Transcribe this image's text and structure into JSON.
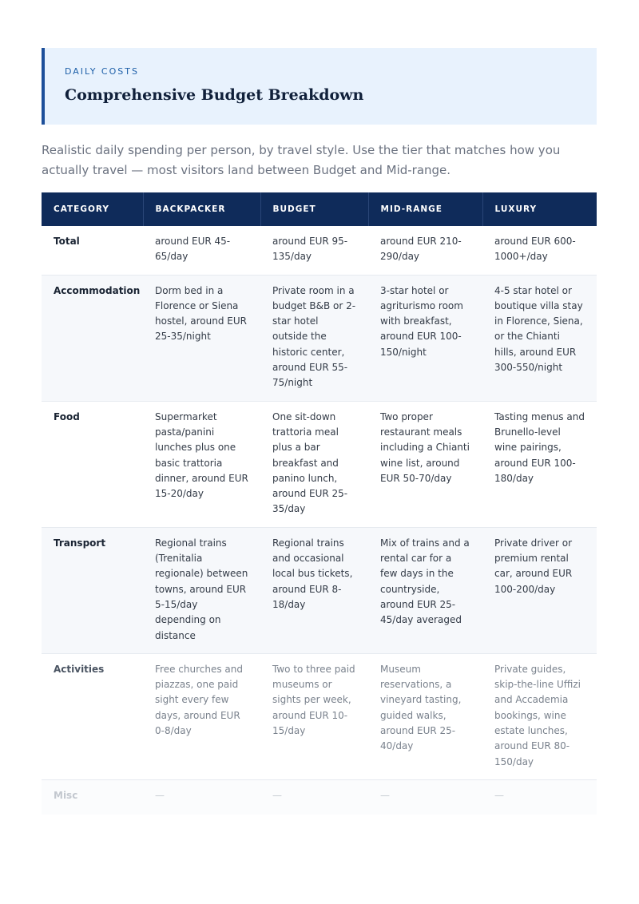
{
  "header": {
    "eyebrow": "DAILY COSTS",
    "title": "Comprehensive Budget Breakdown"
  },
  "intro": "Realistic daily spending per person, by travel style. Use the tier that matches how you actually travel — most visitors land between Budget and Mid-range.",
  "table": {
    "columns": [
      "CATEGORY",
      "BACKPACKER",
      "BUDGET",
      "MID-RANGE",
      "LUXURY"
    ],
    "rows": [
      {
        "category": "Total",
        "backpacker": "around EUR 45-65/day",
        "budget": "around EUR 95-135/day",
        "midrange": "around EUR 210-290/day",
        "luxury": "around EUR 600-1000+/day"
      },
      {
        "category": "Accommodation",
        "backpacker": "Dorm bed in a Florence or Siena hostel, around EUR 25-35/night",
        "budget": "Private room in a budget B&B or 2-star hotel outside the historic center, around EUR 55-75/night",
        "midrange": "3-star hotel or agriturismo room with breakfast, around EUR 100-150/night",
        "luxury": "4-5 star hotel or boutique villa stay in Florence, Siena, or the Chianti hills, around EUR 300-550/night"
      },
      {
        "category": "Food",
        "backpacker": "Supermarket pasta/panini lunches plus one basic trattoria dinner, around EUR 15-20/day",
        "budget": "One sit-down trattoria meal plus a bar breakfast and panino lunch, around EUR 25-35/day",
        "midrange": "Two proper restaurant meals including a Chianti wine list, around EUR 50-70/day",
        "luxury": "Tasting menus and Brunello-level wine pairings, around EUR 100-180/day"
      },
      {
        "category": "Transport",
        "backpacker": "Regional trains (Trenitalia regionale) between towns, around EUR 5-15/day depending on distance",
        "budget": "Regional trains and occasional local bus tickets, around EUR 8-18/day",
        "midrange": "Mix of trains and a rental car for a few days in the countryside, around EUR 25-45/day averaged",
        "luxury": "Private driver or premium rental car, around EUR 100-200/day"
      },
      {
        "category": "Activities",
        "backpacker": "Free churches and piazzas, one paid sight every few days, around EUR 0-8/day",
        "budget": "Two to three paid museums or sights per week, around EUR 10-15/day",
        "midrange": "Museum reservations, a vineyard tasting, guided walks, around EUR 25-40/day",
        "luxury": "Private guides, skip-the-line Uffizi and Accademia bookings, wine estate lunches, around EUR 80-150/day"
      },
      {
        "category": "Misc",
        "backpacker": "—",
        "budget": "—",
        "midrange": "—",
        "luxury": "—"
      }
    ]
  }
}
